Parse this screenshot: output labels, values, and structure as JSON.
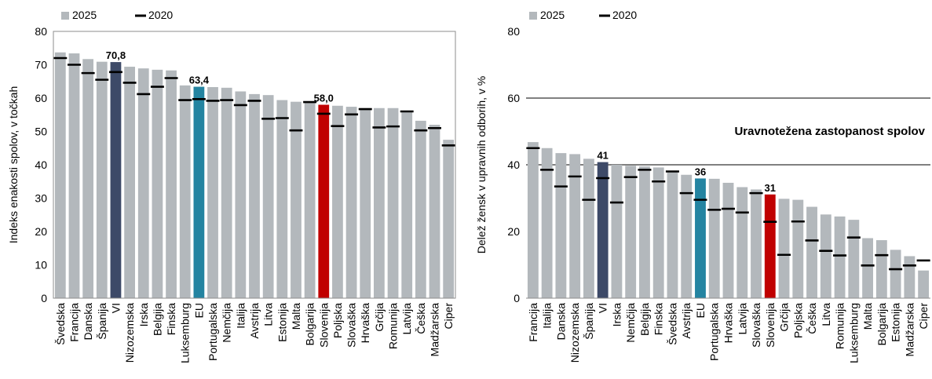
{
  "colors": {
    "bar_default": "#b3b8bc",
    "bar_vi": "#3d4a68",
    "bar_eu": "#2484a1",
    "bar_slovenia": "#c00000",
    "marker_2020": "#000000",
    "label_vi": "#3d4a68",
    "label_eu": "#2484a1",
    "label_slovenia": "#c00000"
  },
  "chart_data": [
    {
      "type": "bar",
      "ylabel": "Indeks enakosti spolov, v točkah",
      "ylim": [
        0,
        80
      ],
      "yticks": [
        0,
        10,
        20,
        30,
        40,
        50,
        60,
        70,
        80
      ],
      "legend": {
        "series_2025": "2025",
        "series_2020": "2020",
        "placement": "top-left"
      },
      "categories": [
        "Švedska",
        "Francija",
        "Danska",
        "Španija",
        "VI",
        "Nizozemska",
        "Irska",
        "Belgija",
        "Finska",
        "Luksemburg",
        "EU",
        "Portugalska",
        "Nemčija",
        "Italija",
        "Avstrija",
        "Litva",
        "Estonija",
        "Malta",
        "Bolgarija",
        "Slovenija",
        "Poljska",
        "Slovaška",
        "Hrvaška",
        "Grčija",
        "Romunija",
        "Latvija",
        "Češka",
        "Madžarska",
        "Ciper"
      ],
      "series": [
        {
          "name": "2025",
          "values": [
            73.7,
            73.4,
            71.7,
            70.9,
            70.8,
            69.4,
            68.9,
            68.5,
            68.3,
            63.8,
            63.4,
            63.3,
            63.1,
            62.0,
            61.2,
            60.9,
            59.4,
            58.9,
            58.7,
            58.0,
            57.7,
            57.4,
            57.0,
            57.0,
            57.0,
            56.2,
            53.2,
            52.0,
            47.5
          ]
        },
        {
          "name": "2020",
          "values": [
            72.0,
            70.0,
            67.5,
            65.5,
            67.8,
            64.6,
            61.2,
            63.4,
            66.0,
            59.4,
            59.7,
            59.2,
            59.4,
            57.9,
            59.2,
            53.8,
            54.0,
            50.3,
            58.8,
            55.3,
            51.6,
            55.1,
            56.7,
            51.2,
            51.5,
            56.0,
            50.3,
            51.0,
            45.8
          ]
        }
      ],
      "value_labels": [
        {
          "category": "VI",
          "text": "70,8",
          "color_key": "label_vi"
        },
        {
          "category": "EU",
          "text": "63,4",
          "color_key": "label_eu"
        },
        {
          "category": "Slovenija",
          "text": "58,0",
          "color_key": "label_slovenia"
        }
      ]
    },
    {
      "type": "bar",
      "ylabel": "Delež žensk v upravnih odborih, v %",
      "ylim": [
        0,
        80
      ],
      "yticks": [
        0,
        20,
        40,
        60,
        80
      ],
      "legend": {
        "series_2025": "2025",
        "series_2020": "2020",
        "placement": "top-left"
      },
      "reference_lines": [
        40,
        60
      ],
      "band_label": "Uravnotežena zastopanost spolov",
      "categories": [
        "Francija",
        "Italija",
        "Danska",
        "Nizozemska",
        "Španija",
        "VI",
        "Irska",
        "Nemčija",
        "Belgija",
        "Finska",
        "Švedska",
        "Avstrija",
        "EU",
        "Portugalska",
        "Hrvaška",
        "Latvija",
        "Slovaška",
        "Slovenija",
        "Grčija",
        "Poljska",
        "Češka",
        "Litva",
        "Romunija",
        "Luksemburg",
        "Malta",
        "Bolgarija",
        "Estonija",
        "Madžarska",
        "Ciper"
      ],
      "series": [
        {
          "name": "2025",
          "values": [
            46.8,
            45.0,
            43.5,
            43.2,
            41.8,
            40.8,
            40.0,
            39.7,
            39.5,
            39.2,
            38.0,
            37.0,
            35.9,
            35.8,
            34.6,
            33.3,
            32.6,
            31.1,
            29.8,
            29.5,
            27.4,
            25.1,
            24.5,
            23.5,
            18.0,
            17.4,
            14.5,
            12.6,
            8.3
          ]
        },
        {
          "name": "2020",
          "values": [
            45.0,
            38.5,
            33.5,
            36.5,
            29.5,
            36.0,
            28.7,
            36.3,
            38.5,
            35.0,
            38.0,
            31.5,
            29.5,
            26.5,
            26.8,
            25.7,
            31.5,
            22.9,
            13.0,
            23.0,
            17.3,
            14.2,
            12.8,
            18.2,
            9.8,
            12.9,
            8.7,
            9.8,
            11.3
          ]
        }
      ],
      "value_labels": [
        {
          "category": "VI",
          "text": "41",
          "color_key": "label_vi"
        },
        {
          "category": "EU",
          "text": "36",
          "color_key": "label_eu"
        },
        {
          "category": "Slovenija",
          "text": "31",
          "color_key": "label_slovenia"
        }
      ]
    }
  ]
}
